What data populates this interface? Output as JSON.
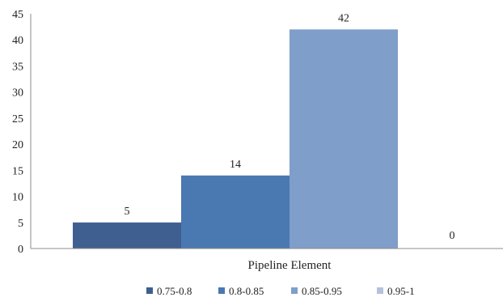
{
  "chart_data": {
    "type": "bar",
    "title": "",
    "xlabel": "",
    "ylabel": "",
    "categories": [
      "Pipeline Element"
    ],
    "series": [
      {
        "name": "0.75-0.8",
        "values": [
          5
        ],
        "color": "#3f5f90"
      },
      {
        "name": "0.8-0.85",
        "values": [
          14
        ],
        "color": "#4a78b1"
      },
      {
        "name": "0.85-0.95",
        "values": [
          42
        ],
        "color": "#7f9ec9"
      },
      {
        "name": "0.95-1",
        "values": [
          0
        ],
        "color": "#b4c2dd"
      }
    ],
    "ylim": [
      0,
      45
    ],
    "yticks": [
      "0",
      "5",
      "10",
      "15",
      "20",
      "25",
      "30",
      "35",
      "40",
      "45"
    ],
    "data_labels": [
      "5",
      "14",
      "42",
      "0"
    ],
    "grid": false,
    "legend": "bottom"
  }
}
